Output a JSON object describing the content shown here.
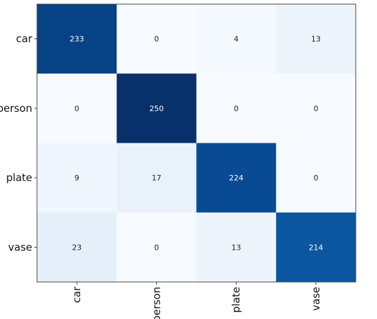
{
  "chart_data": {
    "type": "heatmap",
    "title": "",
    "xlabel": "",
    "ylabel": "",
    "row_labels": [
      "car",
      "person",
      "plate",
      "vase"
    ],
    "col_labels": [
      "car",
      "person",
      "plate",
      "vase"
    ],
    "values": [
      [
        233,
        0,
        4,
        13
      ],
      [
        0,
        250,
        0,
        0
      ],
      [
        9,
        17,
        224,
        0
      ],
      [
        23,
        0,
        13,
        214
      ]
    ],
    "value_range": [
      0,
      250
    ],
    "colormap": "Blues",
    "colors": {
      "low": "#f7fbff",
      "high": "#08306b",
      "text_dark": "#222222",
      "text_light": "#ffffff",
      "frame": "#444444"
    },
    "grid": false,
    "legend": "none"
  }
}
